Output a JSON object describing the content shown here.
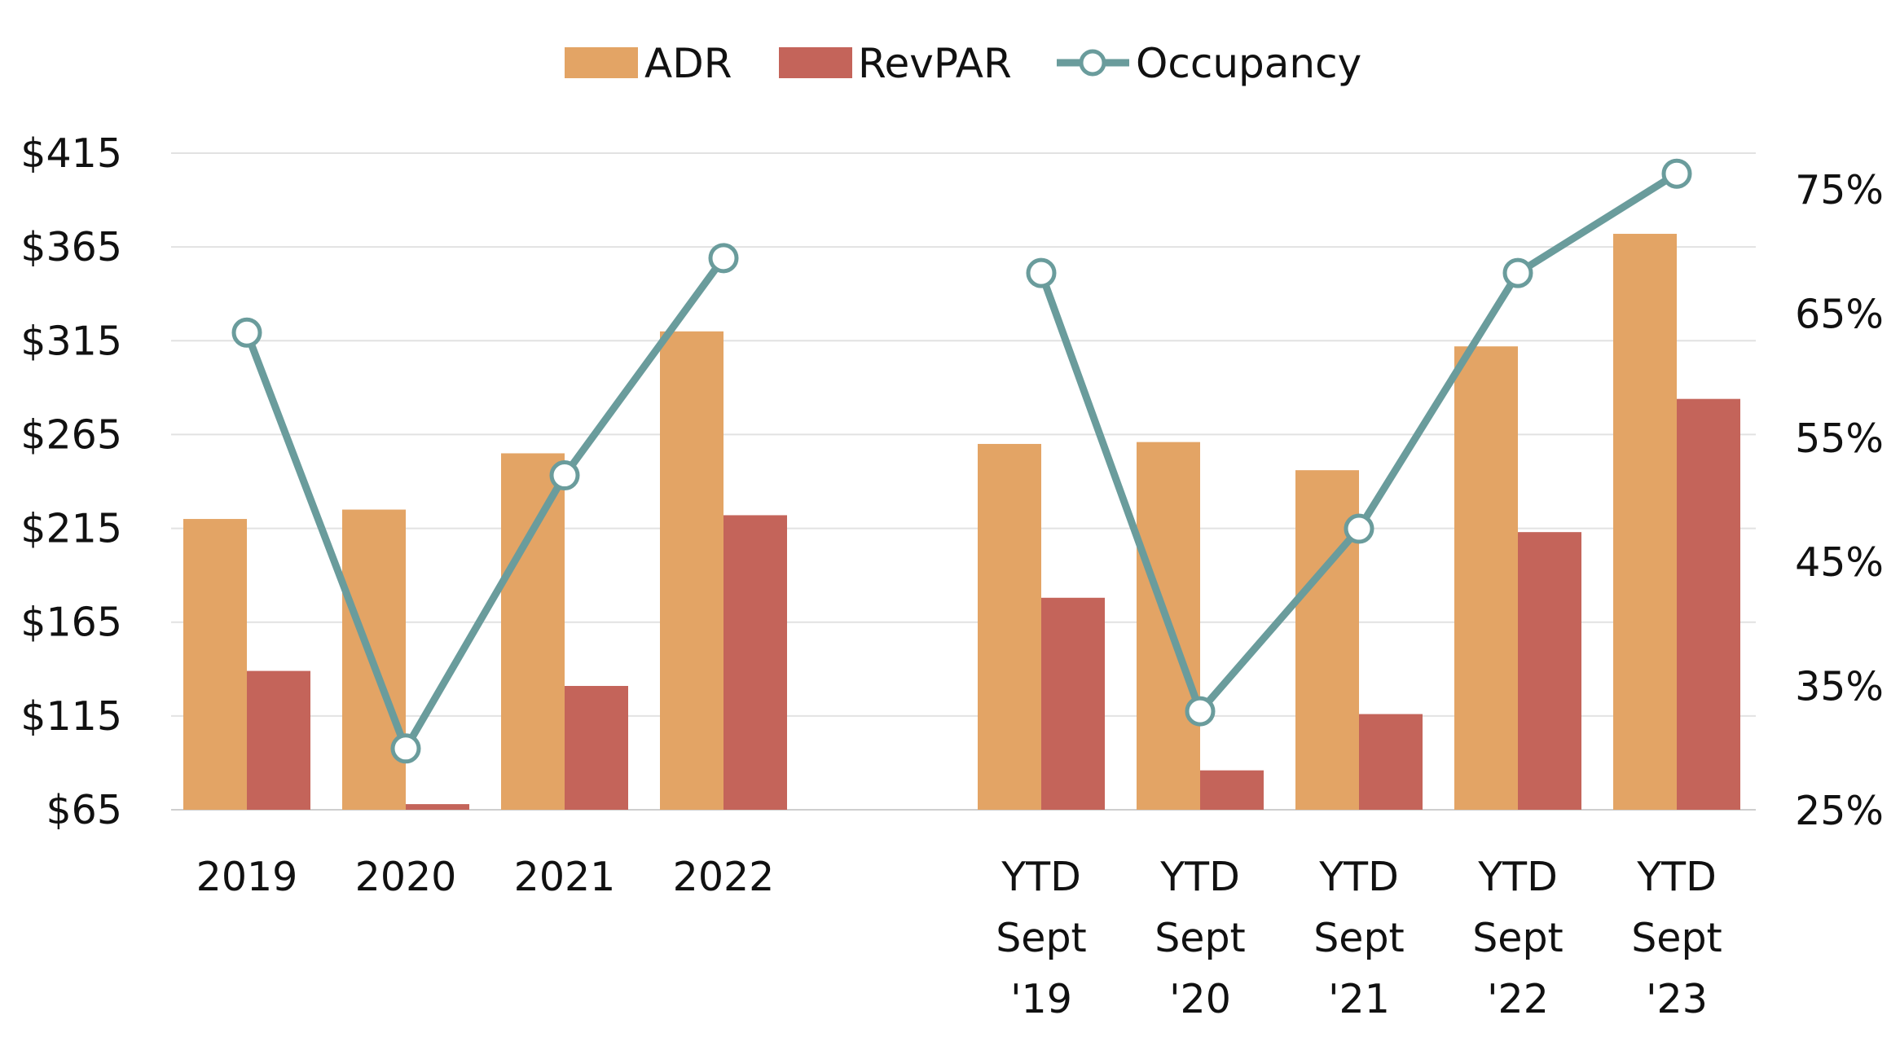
{
  "chart_data": {
    "type": "bar",
    "categories": [
      [
        "2019"
      ],
      [
        "2020"
      ],
      [
        "2021"
      ],
      [
        "2022"
      ],
      [],
      [
        "YTD",
        "Sept",
        "'19"
      ],
      [
        "YTD",
        "Sept",
        "'20"
      ],
      [
        "YTD",
        "Sept",
        "'21"
      ],
      [
        "YTD",
        "Sept",
        "'22"
      ],
      [
        "YTD",
        "Sept",
        "'23"
      ]
    ],
    "series": [
      {
        "name": "ADR",
        "kind": "bar",
        "axis": "left",
        "color": "#E3A465",
        "values": [
          220,
          225,
          255,
          320,
          null,
          260,
          261,
          246,
          312,
          372
        ]
      },
      {
        "name": "RevPAR",
        "kind": "bar",
        "axis": "left",
        "color": "#C4645A",
        "values": [
          139,
          68,
          131,
          222,
          null,
          178,
          86,
          116,
          213,
          284
        ]
      },
      {
        "name": "Occupancy",
        "kind": "line",
        "axis": "right",
        "color": "#6A9C9C",
        "values": [
          63.5,
          30,
          52,
          69.5,
          null,
          68.3,
          33,
          47.7,
          68.3,
          76.3
        ]
      }
    ],
    "y_left": {
      "min": 65,
      "max": 415,
      "ticks": [
        "$415",
        "$365",
        "$315",
        "$265",
        "$215",
        "$165",
        "$115",
        "$65"
      ],
      "tick_values": [
        415,
        365,
        315,
        265,
        215,
        165,
        115,
        65
      ]
    },
    "y_right": {
      "min": 25,
      "max": 78,
      "ticks": [
        "75%",
        "65%",
        "55%",
        "45%",
        "35%",
        "25%"
      ],
      "tick_values": [
        75,
        65,
        55,
        45,
        35,
        25
      ]
    },
    "legend": {
      "position": "top-center",
      "items": [
        "ADR",
        "RevPAR",
        "Occupancy"
      ]
    },
    "grid": true,
    "title": "",
    "xlabel": "",
    "ylabel": ""
  }
}
